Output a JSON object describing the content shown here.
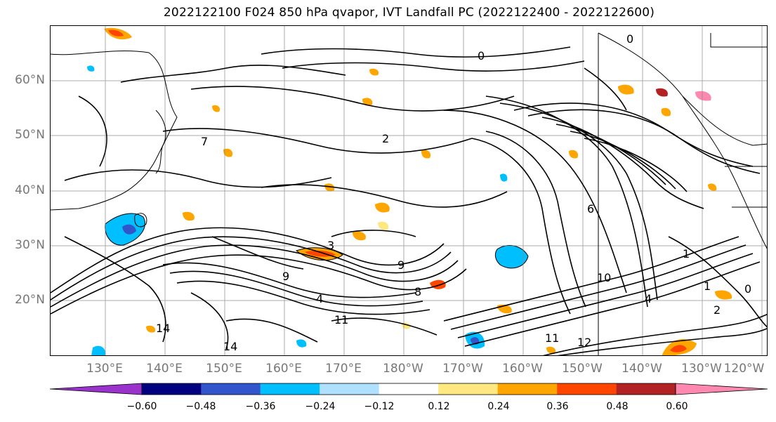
{
  "title": "2022122100 F024 850 hPa qvapor, IVT Landfall PC (2022122400 - 2022122600)",
  "lat_labels": [
    "60°N",
    "50°N",
    "40°N",
    "30°N",
    "20°N"
  ],
  "lon_labels": [
    "130°E",
    "140°E",
    "150°E",
    "160°E",
    "170°E",
    "180°W",
    "170°W",
    "160°W",
    "150°W",
    "140°W",
    "130°W",
    "120°W"
  ],
  "colorbar": {
    "ticks": [
      "−0.60",
      "−0.48",
      "−0.36",
      "−0.24",
      "−0.12",
      "0.12",
      "0.24",
      "0.36",
      "0.48",
      "0.60"
    ],
    "colors": [
      "#9933cc",
      "#000080",
      "#3355cc",
      "#00bfff",
      "#b0e0ff",
      "#ffffff",
      "#ffe880",
      "#ffa500",
      "#ff4500",
      "#b22222",
      "#ff88b0"
    ]
  },
  "contour_labels": [
    "0",
    "0",
    "0",
    "1",
    "1",
    "2",
    "2",
    "3",
    "4",
    "4",
    "6",
    "7",
    "8",
    "9",
    "9",
    "10",
    "11",
    "11",
    "12",
    "14",
    "14"
  ]
}
